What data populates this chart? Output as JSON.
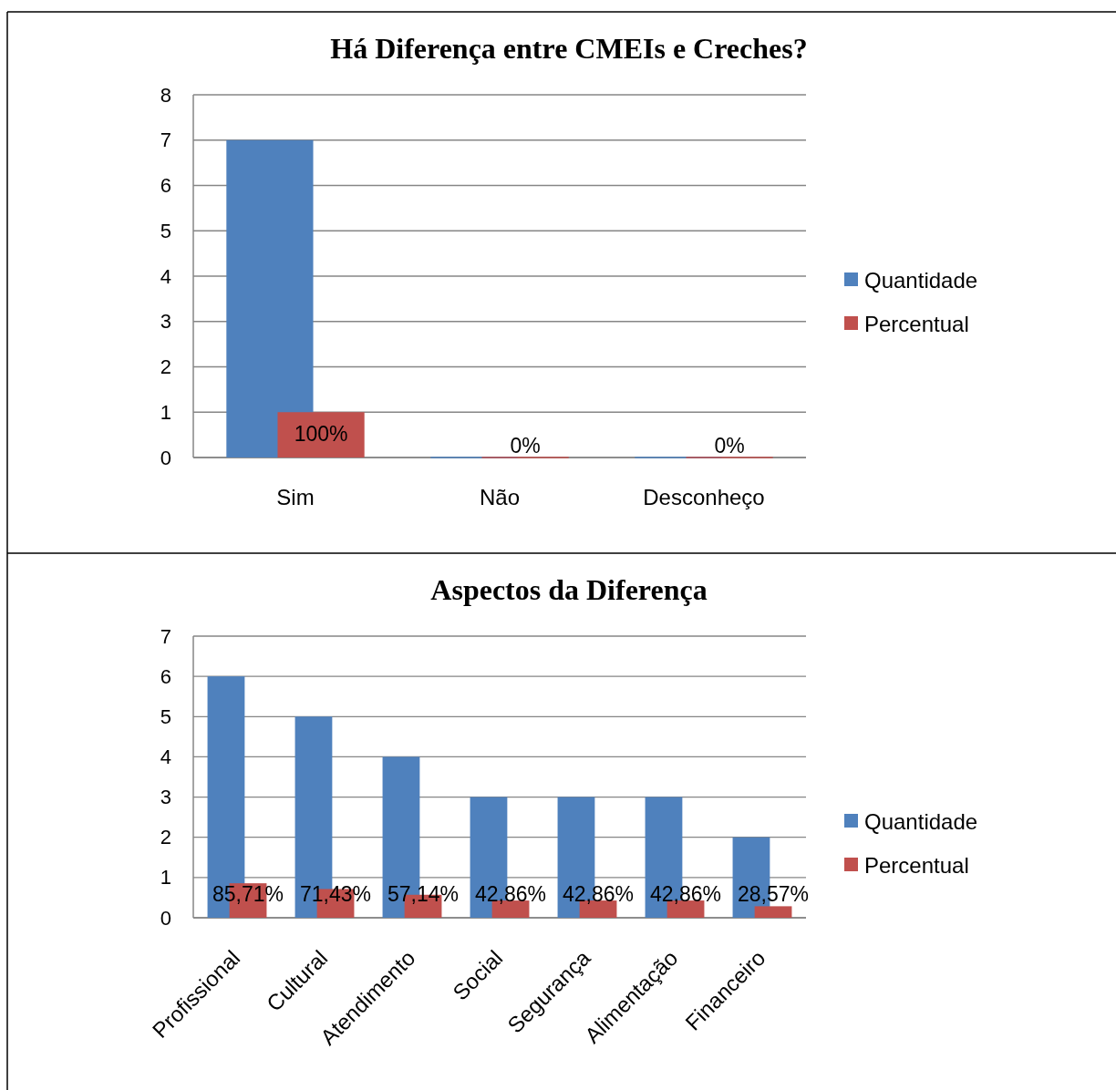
{
  "chart_data": [
    {
      "type": "bar",
      "title": "Há Diferença entre CMEIs e Creches?",
      "categories": [
        "Sim",
        "Não",
        "Desconheço"
      ],
      "series": [
        {
          "name": "Quantidade",
          "color": "#4f81bd",
          "values": [
            7,
            0,
            0
          ]
        },
        {
          "name": "Percentual",
          "color": "#c0504d",
          "values": [
            1,
            0,
            0
          ],
          "value_labels": [
            "100%",
            "0%",
            "0%"
          ]
        }
      ],
      "ylim": [
        0,
        8
      ],
      "yticks": [
        0,
        1,
        2,
        3,
        4,
        5,
        6,
        7,
        8
      ],
      "grid": "y",
      "legend": "right"
    },
    {
      "type": "bar",
      "title": "Aspectos da Diferença",
      "categories": [
        "Profissional",
        "Cultural",
        "Atendimento",
        "Social",
        "Segurança",
        "Alimentação",
        "Financeiro"
      ],
      "series": [
        {
          "name": "Quantidade",
          "color": "#4f81bd",
          "values": [
            6,
            5,
            4,
            3,
            3,
            3,
            2
          ]
        },
        {
          "name": "Percentual",
          "color": "#c0504d",
          "values": [
            0.8571,
            0.7143,
            0.5714,
            0.4286,
            0.4286,
            0.4286,
            0.2857
          ],
          "value_labels": [
            "85,71%",
            "71,43%",
            "57,14%",
            "42,86%",
            "42,86%",
            "42,86%",
            "28,57%"
          ]
        }
      ],
      "ylim": [
        0,
        7
      ],
      "yticks": [
        0,
        1,
        2,
        3,
        4,
        5,
        6,
        7
      ],
      "grid": "y",
      "legend": "right"
    }
  ]
}
